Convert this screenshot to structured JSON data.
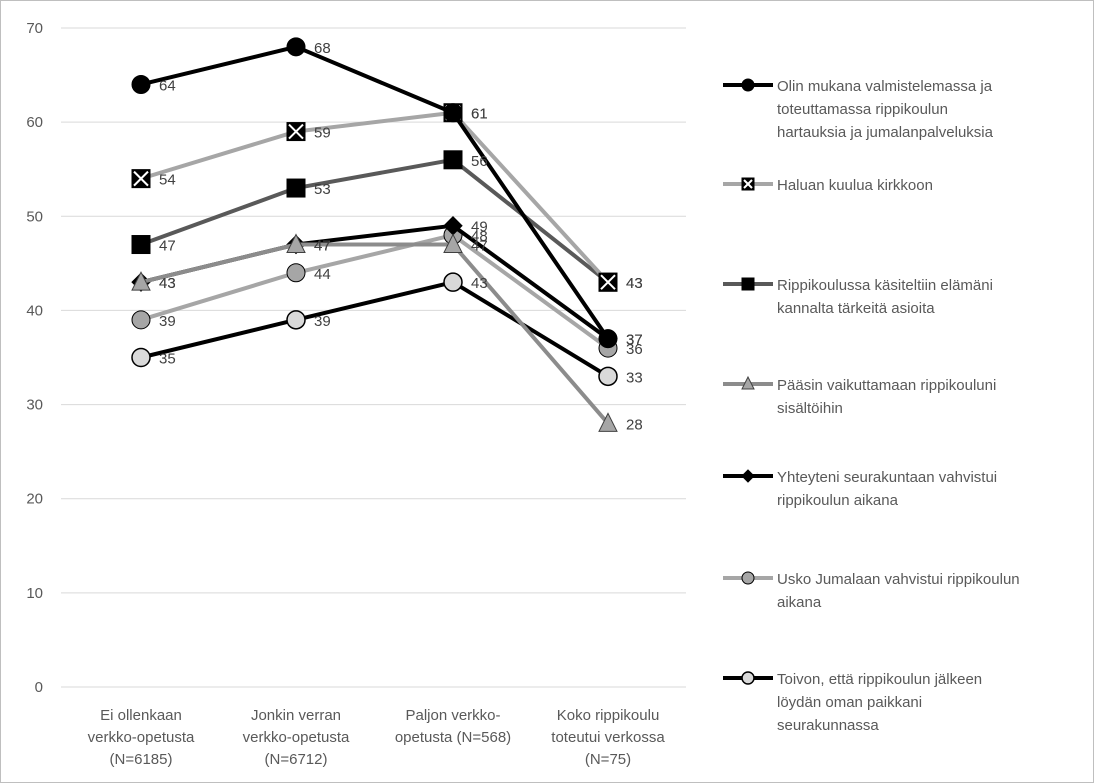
{
  "chart_data": {
    "type": "line",
    "title": "",
    "xlabel": "",
    "ylabel": "",
    "ylim": [
      0,
      70
    ],
    "yticks": [
      0,
      10,
      20,
      30,
      40,
      50,
      60,
      70
    ],
    "grid": true,
    "legend_position": "right",
    "categories": [
      [
        "Ei ollenkaan",
        "verkko-opetusta",
        "(N=6185)"
      ],
      [
        "Jonkin verran",
        "verkko-opetusta",
        "(N=6712)"
      ],
      [
        "Paljon verkko-",
        "opetusta (N=568)"
      ],
      [
        "Koko rippikoulu",
        "toteutui verkossa",
        "(N=75)"
      ]
    ],
    "series": [
      {
        "name": [
          "Olin mukana valmistelemassa ja",
          "toteuttamassa rippikoulun",
          "hartauksia ja jumalanpalveluksia"
        ],
        "values": [
          64,
          68,
          61,
          37
        ],
        "labels": [
          "64",
          "68",
          "61",
          "37"
        ],
        "color": "#000000",
        "marker": "circle",
        "marker_fill": "#000000"
      },
      {
        "name": [
          "Haluan kuulua kirkkoon"
        ],
        "values": [
          54,
          59,
          61,
          43
        ],
        "labels": [
          "54",
          "59",
          "61",
          "43"
        ],
        "color": "#a6a6a6",
        "marker": "square-x",
        "marker_fill": "#000000"
      },
      {
        "name": [
          "Rippikoulussa käsiteltiin elämäni",
          "kannalta tärkeitä asioita"
        ],
        "values": [
          47,
          53,
          56,
          43
        ],
        "labels": [
          "47",
          "53",
          "56",
          "43"
        ],
        "color": "#595959",
        "marker": "square",
        "marker_fill": "#000000"
      },
      {
        "name": [
          "Pääsin vaikuttamaan rippikouluni",
          "sisältöihin"
        ],
        "values": [
          43,
          47,
          47,
          28
        ],
        "labels": [
          "43",
          "47",
          "47",
          "28"
        ],
        "color": "#8c8c8c",
        "marker": "triangle",
        "marker_fill": "#a6a6a6"
      },
      {
        "name": [
          "Yhteyteni seurakuntaan vahvistui",
          "rippikoulun aikana"
        ],
        "values": [
          43,
          47,
          49,
          37
        ],
        "labels": [
          "43",
          "47",
          "49",
          "37"
        ],
        "color": "#000000",
        "marker": "diamond",
        "marker_fill": "#000000"
      },
      {
        "name": [
          "Usko Jumalaan vahvistui rippikoulun",
          "aikana"
        ],
        "values": [
          39,
          44,
          48,
          36
        ],
        "labels": [
          "39",
          "44",
          "48",
          "36"
        ],
        "color": "#a6a6a6",
        "marker": "circle",
        "marker_fill": "#a6a6a6"
      },
      {
        "name": [
          "Toivon, että rippikoulun jälkeen",
          "löydän oman paikkani",
          "seurakunnassa"
        ],
        "values": [
          35,
          39,
          43,
          33
        ],
        "labels": [
          "35",
          "39",
          "43",
          "33"
        ],
        "color": "#000000",
        "marker": "circle-open",
        "marker_fill": "#d9d9d9"
      }
    ]
  }
}
